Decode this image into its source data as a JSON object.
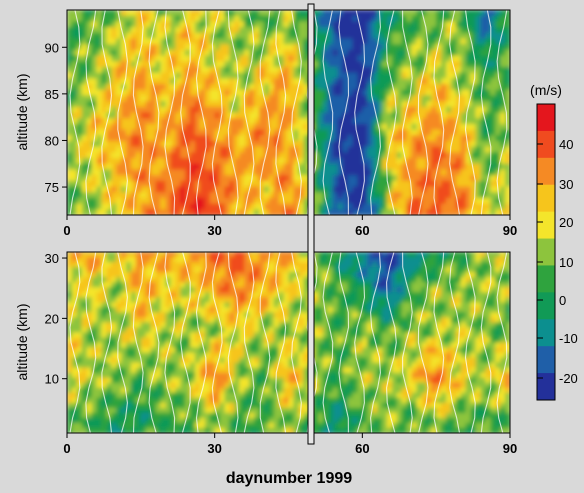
{
  "chart_data": [
    {
      "type": "heatmap",
      "panel": "top",
      "xlabel": "",
      "ylabel": "altitude (km)",
      "xlim": [
        0,
        90
      ],
      "ylim": [
        72,
        94
      ],
      "xticks": [
        "0",
        "30",
        "60",
        "90"
      ],
      "yticks": [
        "75",
        "80",
        "85",
        "90"
      ],
      "x": [
        0,
        5,
        10,
        15,
        20,
        25,
        30,
        35,
        40,
        45,
        50,
        55,
        60,
        65,
        70,
        75,
        80,
        85,
        90
      ],
      "y": [
        73,
        80,
        87,
        93
      ],
      "values": [
        [
          5,
          10,
          15,
          20,
          25,
          35,
          30,
          20,
          15,
          25,
          10,
          -15,
          -20,
          10,
          25,
          30,
          25,
          10,
          15
        ],
        [
          10,
          15,
          20,
          25,
          20,
          30,
          25,
          20,
          25,
          20,
          5,
          -20,
          -25,
          15,
          20,
          25,
          20,
          5,
          10
        ],
        [
          5,
          10,
          15,
          20,
          15,
          20,
          15,
          10,
          15,
          20,
          5,
          -15,
          -20,
          5,
          10,
          15,
          10,
          5,
          5
        ],
        [
          5,
          5,
          10,
          15,
          10,
          15,
          10,
          10,
          5,
          10,
          0,
          -20,
          -25,
          0,
          5,
          5,
          10,
          -15,
          5
        ]
      ]
    },
    {
      "type": "heatmap",
      "panel": "bottom",
      "xlabel": "daynumber 1999",
      "ylabel": "altitude (km)",
      "xlim": [
        0,
        90
      ],
      "ylim": [
        1,
        31
      ],
      "xticks": [
        "0",
        "30",
        "60",
        "90"
      ],
      "yticks": [
        "10",
        "20",
        "30"
      ],
      "x": [
        0,
        5,
        10,
        15,
        20,
        25,
        30,
        35,
        40,
        45,
        50,
        55,
        60,
        65,
        70,
        75,
        80,
        85,
        90
      ],
      "y": [
        3,
        10,
        18,
        25,
        30
      ],
      "values": [
        [
          5,
          5,
          0,
          0,
          5,
          5,
          10,
          5,
          5,
          10,
          5,
          -5,
          5,
          10,
          5,
          10,
          5,
          5,
          5
        ],
        [
          15,
          10,
          10,
          5,
          10,
          10,
          25,
          10,
          5,
          20,
          10,
          5,
          10,
          10,
          15,
          25,
          15,
          10,
          20
        ],
        [
          15,
          10,
          10,
          15,
          10,
          10,
          10,
          15,
          10,
          10,
          10,
          5,
          10,
          5,
          10,
          10,
          10,
          10,
          5
        ],
        [
          10,
          15,
          10,
          20,
          15,
          15,
          20,
          25,
          20,
          15,
          10,
          5,
          0,
          -15,
          5,
          10,
          10,
          10,
          10
        ],
        [
          15,
          20,
          15,
          20,
          20,
          20,
          25,
          30,
          20,
          20,
          10,
          0,
          -10,
          -20,
          -5,
          0,
          5,
          10,
          10
        ]
      ]
    }
  ],
  "colorbar": {
    "title": "(m/s)",
    "ticks": [
      "40",
      "30",
      "20",
      "10",
      "0",
      "-10",
      "-20"
    ],
    "colors": [
      "#e4161d",
      "#f04b1f",
      "#f58a24",
      "#f6c51c",
      "#f4e52b",
      "#8dc43d",
      "#2fa33e",
      "#119a56",
      "#0c8f8f",
      "#1f5fa8",
      "#23309a"
    ]
  }
}
